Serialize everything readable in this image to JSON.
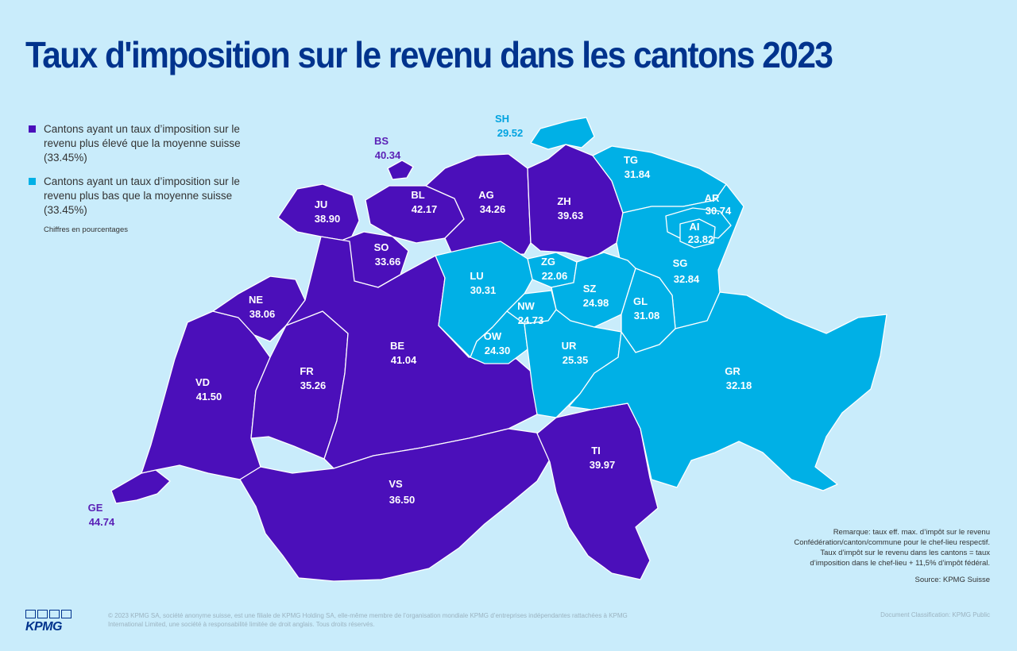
{
  "title": "Taux d'imposition sur le revenu dans les cantons 2023",
  "legend": {
    "above": "Cantons ayant un taux d’imposition sur le revenu  plus élevé  que la moyenne suisse (33.45%)",
    "below": "Cantons ayant un taux d’imposition sur le revenu  plus bas que la moyenne suisse (33.45%)",
    "note": "Chiffres en pourcentages"
  },
  "colors": {
    "above": "#4b0fba",
    "below": "#00b0e6",
    "background": "#c9ecfb",
    "title": "#00338d"
  },
  "cantons": [
    {
      "code": "BS",
      "value": "40.34"
    },
    {
      "code": "SH",
      "value": "29.52"
    },
    {
      "code": "JU",
      "value": "38.90"
    },
    {
      "code": "BL",
      "value": "42.17"
    },
    {
      "code": "AG",
      "value": "34.26"
    },
    {
      "code": "ZH",
      "value": "39.63"
    },
    {
      "code": "TG",
      "value": "31.84"
    },
    {
      "code": "AR",
      "value": "30.74"
    },
    {
      "code": "AI",
      "value": "23.82"
    },
    {
      "code": "SO",
      "value": "33.66"
    },
    {
      "code": "ZG",
      "value": "22.06"
    },
    {
      "code": "LU",
      "value": "30.31"
    },
    {
      "code": "SG",
      "value": "32.84"
    },
    {
      "code": "NE",
      "value": "38.06"
    },
    {
      "code": "SZ",
      "value": "24.98"
    },
    {
      "code": "NW",
      "value": "24.73"
    },
    {
      "code": "GL",
      "value": "31.08"
    },
    {
      "code": "OW",
      "value": "24.30"
    },
    {
      "code": "BE",
      "value": "41.04"
    },
    {
      "code": "UR",
      "value": "25.35"
    },
    {
      "code": "VD",
      "value": "41.50"
    },
    {
      "code": "FR",
      "value": "35.26"
    },
    {
      "code": "GR",
      "value": "32.18"
    },
    {
      "code": "TI",
      "value": "39.97"
    },
    {
      "code": "VS",
      "value": "36.50"
    },
    {
      "code": "GE",
      "value": "44.74"
    }
  ],
  "remark": {
    "line1": "Remarque:  taux eff. max. d’impôt sur le revenu",
    "line2": "Confédération/canton/commune pour le chef-lieu respectif.",
    "line3": "Taux d’impôt sur le revenu dans les cantons = taux",
    "line4": "d’imposition dans le chef-lieu + 11,5%  d’impôt fédéral.",
    "source": "Source: KPMG Suisse"
  },
  "footer": {
    "logo": "KPMG",
    "copyright": "© 2023  KPMG SA, société anonyme  suisse, est une filiale de KPMG Holding SA, elle-même membre de l’organisation  mondiale KPMG d’entreprises indépendantes rattachées  à KPMG International  Limited, une société  à responsabilité  limitée de droit anglais.  Tous droits réservés.",
    "classification": "Document  Classification:  KPMG Public"
  }
}
